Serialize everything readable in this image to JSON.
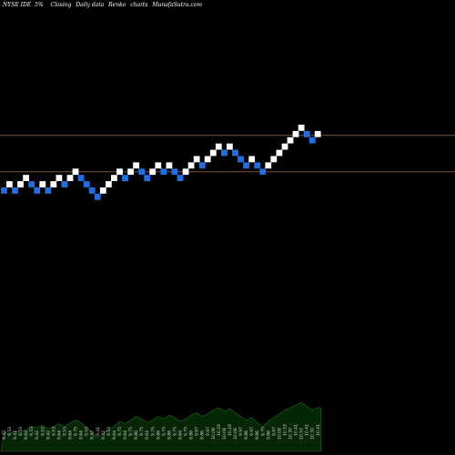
{
  "header": {
    "symbol": "NYSE IDE",
    "change": "5%",
    "price_type": "Closing",
    "period": "Daily data",
    "chart_type": "Renko",
    "word": "charts",
    "site": "MunafaSutra.com"
  },
  "colors": {
    "background": "#000000",
    "up_brick": "#ffffff",
    "down_brick": "#1e6fe6",
    "level_line": "#7a5030",
    "volume_fill": "#062706",
    "volume_edge": "#1e6a1e"
  },
  "chart_data": {
    "type": "renko",
    "bricks": [
      {
        "dir": "down",
        "level": 0
      },
      {
        "dir": "up",
        "level": 1
      },
      {
        "dir": "down",
        "level": 0
      },
      {
        "dir": "up",
        "level": 1
      },
      {
        "dir": "up",
        "level": 2
      },
      {
        "dir": "down",
        "level": 1
      },
      {
        "dir": "down",
        "level": 0
      },
      {
        "dir": "up",
        "level": 1
      },
      {
        "dir": "down",
        "level": 0
      },
      {
        "dir": "up",
        "level": 1
      },
      {
        "dir": "up",
        "level": 2
      },
      {
        "dir": "down",
        "level": 1
      },
      {
        "dir": "up",
        "level": 2
      },
      {
        "dir": "up",
        "level": 3
      },
      {
        "dir": "down",
        "level": 2
      },
      {
        "dir": "down",
        "level": 1
      },
      {
        "dir": "down",
        "level": 0
      },
      {
        "dir": "down",
        "level": -1
      },
      {
        "dir": "up",
        "level": 0
      },
      {
        "dir": "up",
        "level": 1
      },
      {
        "dir": "up",
        "level": 2
      },
      {
        "dir": "up",
        "level": 3
      },
      {
        "dir": "down",
        "level": 2
      },
      {
        "dir": "up",
        "level": 3
      },
      {
        "dir": "up",
        "level": 4
      },
      {
        "dir": "down",
        "level": 3
      },
      {
        "dir": "down",
        "level": 2
      },
      {
        "dir": "up",
        "level": 3
      },
      {
        "dir": "up",
        "level": 4
      },
      {
        "dir": "down",
        "level": 3
      },
      {
        "dir": "up",
        "level": 4
      },
      {
        "dir": "down",
        "level": 3
      },
      {
        "dir": "down",
        "level": 2
      },
      {
        "dir": "up",
        "level": 3
      },
      {
        "dir": "up",
        "level": 4
      },
      {
        "dir": "up",
        "level": 5
      },
      {
        "dir": "down",
        "level": 4
      },
      {
        "dir": "up",
        "level": 5
      },
      {
        "dir": "up",
        "level": 6
      },
      {
        "dir": "up",
        "level": 7
      },
      {
        "dir": "down",
        "level": 6
      },
      {
        "dir": "up",
        "level": 7
      },
      {
        "dir": "down",
        "level": 6
      },
      {
        "dir": "down",
        "level": 5
      },
      {
        "dir": "down",
        "level": 4
      },
      {
        "dir": "up",
        "level": 5
      },
      {
        "dir": "down",
        "level": 4
      },
      {
        "dir": "down",
        "level": 3
      },
      {
        "dir": "up",
        "level": 4
      },
      {
        "dir": "up",
        "level": 5
      },
      {
        "dir": "up",
        "level": 6
      },
      {
        "dir": "up",
        "level": 7
      },
      {
        "dir": "up",
        "level": 8
      },
      {
        "dir": "up",
        "level": 9
      },
      {
        "dir": "up",
        "level": 10
      },
      {
        "dir": "down",
        "level": 9
      },
      {
        "dir": "down",
        "level": 8
      },
      {
        "dir": "up",
        "level": 9
      }
    ],
    "levels": [
      2.5,
      8.3
    ],
    "value_labels": [
      "9.42",
      "9.53",
      "9.42",
      "9.53",
      "9.64",
      "9.53",
      "9.42",
      "9.53",
      "9.42",
      "9.53",
      "9.64",
      "9.53",
      "9.64",
      "9.75",
      "9.64",
      "9.53",
      "9.42",
      "9.31",
      "9.42",
      "9.53",
      "9.64",
      "9.75",
      "9.64",
      "9.75",
      "9.86",
      "9.75",
      "9.64",
      "9.75",
      "9.86",
      "9.75",
      "9.86",
      "9.75",
      "9.64",
      "9.75",
      "9.86",
      "9.97",
      "9.86",
      "9.97",
      "10.08",
      "10.19",
      "10.08",
      "10.19",
      "10.08",
      "9.97",
      "9.86",
      "9.97",
      "9.86",
      "9.75",
      "9.86",
      "9.97",
      "10.08",
      "10.19",
      "10.30",
      "10.41",
      "10.52",
      "10.41",
      "10.30",
      "10.41"
    ],
    "volume": [
      30,
      28,
      32,
      30,
      35,
      40,
      38,
      42,
      36,
      40,
      44,
      40,
      45,
      50,
      46,
      38,
      30,
      22,
      28,
      35,
      40,
      48,
      44,
      50,
      56,
      52,
      46,
      50,
      56,
      52,
      58,
      54,
      48,
      52,
      58,
      62,
      56,
      60,
      66,
      70,
      64,
      68,
      62,
      56,
      50,
      54,
      46,
      40,
      48,
      54,
      60,
      66,
      70,
      74,
      78,
      72,
      66,
      70
    ]
  }
}
